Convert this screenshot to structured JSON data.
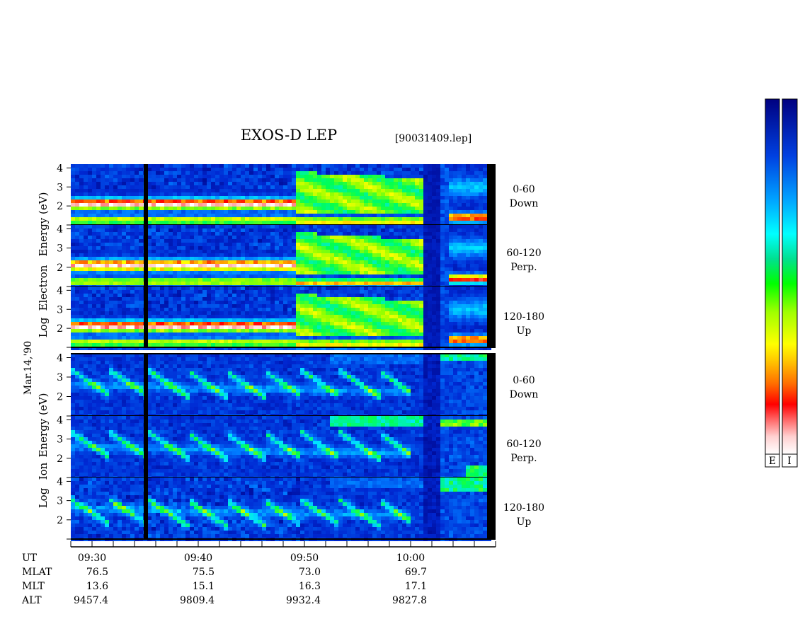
{
  "chart_data": {
    "type": "heatmap",
    "title": "EXOS-D LEP",
    "file_tag": "[90031409.lep]",
    "side_label": "Mar.14,'90",
    "x_axis": {
      "label": "UT",
      "tick_labels": [
        "09:30",
        "09:40",
        "09:50",
        "10:00"
      ],
      "range": [
        "09:28",
        "10:08"
      ]
    },
    "y_tick_labels": [
      "1",
      "2",
      "3",
      "4"
    ],
    "groups": [
      {
        "ylabel": "Log Electron Energy (eV)",
        "ylabel_words": [
          "Log",
          "Electron",
          "Energy (eV)"
        ],
        "ylim": [
          1,
          4.2
        ],
        "panels": [
          {
            "label_top": "0-60",
            "label_bottom": "Down"
          },
          {
            "label_top": "60-120",
            "label_bottom": "Perp."
          },
          {
            "label_top": "120-180",
            "label_bottom": "Up"
          }
        ]
      },
      {
        "ylabel": "Log Ion Energy (eV)",
        "ylabel_words": [
          "Log",
          "Ion",
          "Energy (eV)"
        ],
        "ylim": [
          1,
          4.2
        ],
        "panels": [
          {
            "label_top": "0-60",
            "label_bottom": "Down"
          },
          {
            "label_top": "60-120",
            "label_bottom": "Perp."
          },
          {
            "label_top": "120-180",
            "label_bottom": "Up"
          }
        ]
      }
    ],
    "ephemeris": {
      "row_labels": [
        "UT",
        "MLAT",
        "MLT",
        "ALT"
      ],
      "columns": [
        {
          "ut": "09:30",
          "mlat": "76.5",
          "mlt": "13.6",
          "alt": "9457.4"
        },
        {
          "ut": "09:40",
          "mlat": "75.5",
          "mlt": "15.1",
          "alt": "9809.4"
        },
        {
          "ut": "09:50",
          "mlat": "73.0",
          "mlt": "16.3",
          "alt": "9932.4"
        },
        {
          "ut": "10:00",
          "mlat": "69.7",
          "mlt": "17.1",
          "alt": "9827.8"
        }
      ]
    },
    "colorbar_labels": [
      "E",
      "I"
    ],
    "colormap": [
      "#ffffff",
      "#ff9a9a",
      "#ff0000",
      "#ff8c00",
      "#ffff00",
      "#00ff00",
      "#00ffff",
      "#0090ff",
      "#0030d0",
      "#000080"
    ]
  }
}
